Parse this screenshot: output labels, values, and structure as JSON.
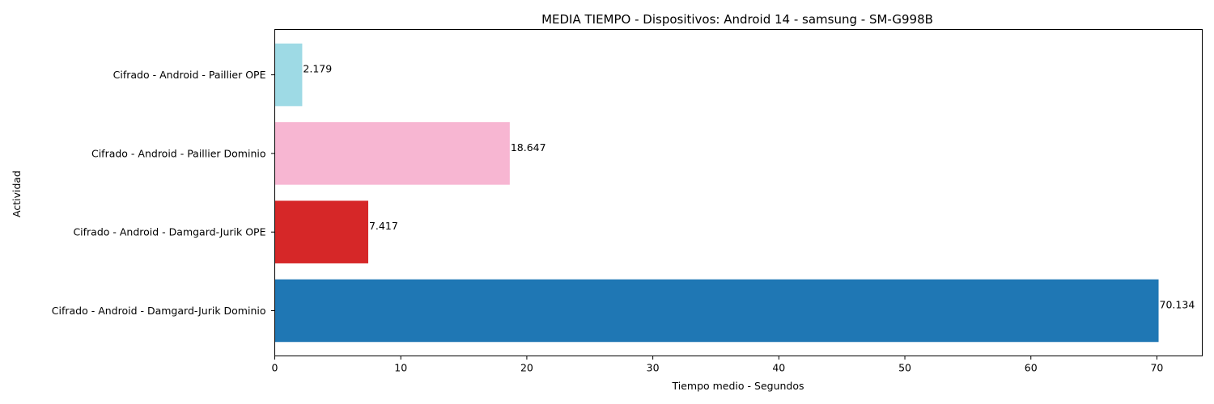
{
  "chart_data": {
    "type": "bar",
    "orientation": "horizontal",
    "title": "MEDIA TIEMPO - Dispositivos: Android 14 - samsung - SM-G998B",
    "xlabel": "Tiempo medio - Segundos",
    "ylabel": "Actividad",
    "xlim": [
      0,
      73.6
    ],
    "x_ticks": [
      "0",
      "10",
      "20",
      "30",
      "40",
      "50",
      "60",
      "70"
    ],
    "grid": false,
    "bars": [
      {
        "category": "Cifrado - Android - Damgard-Jurik Dominio",
        "value": 70.134,
        "label": "70.134",
        "color": "#1f77b4"
      },
      {
        "category": "Cifrado - Android - Damgard-Jurik OPE",
        "value": 7.417,
        "label": "7.417",
        "color": "#d62728"
      },
      {
        "category": "Cifrado - Android - Paillier Dominio",
        "value": 18.647,
        "label": "18.647",
        "color": "#f7b6d2"
      },
      {
        "category": "Cifrado - Android - Paillier OPE",
        "value": 2.179,
        "label": "2.179",
        "color": "#9edae5"
      }
    ]
  }
}
